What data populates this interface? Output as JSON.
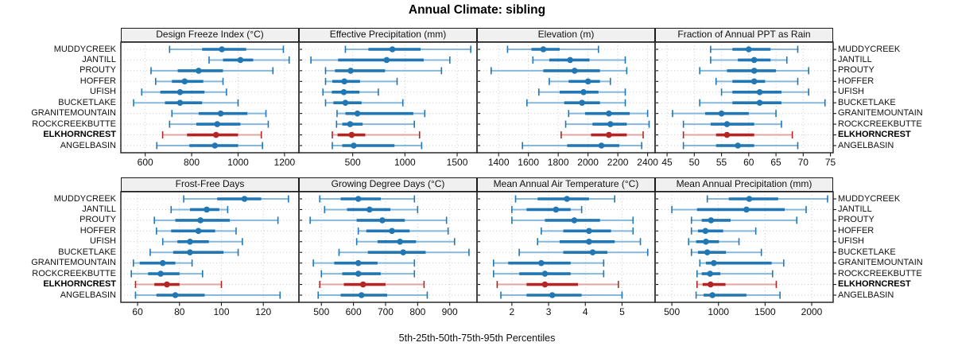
{
  "title": "Annual Climate: sibling",
  "caption": "5th-25th-50th-75th-95th Percentiles",
  "sites": [
    "MUDDYCREEK",
    "JANTILL",
    "PROUTY",
    "HOFFER",
    "UFISH",
    "BUCKETLAKE",
    "GRANITEMOUNTAIN",
    "ROCKCREEKBUTTE",
    "ELKHORNCREST",
    "ANGELBASIN"
  ],
  "highlight_site": "ELKHORNCREST",
  "colors": {
    "series_dark": "#2077b4",
    "series_light": "#85b8dd",
    "highlight_dark": "#b22626",
    "highlight_light": "#e0a5a2",
    "grid": "#cccccc",
    "border": "#1a1a1a",
    "strip_bg": "#f0f0f0"
  },
  "chart_data": [
    {
      "type": "dotplot-interval",
      "title": "Design Freeze Index (°C)",
      "percentiles": [
        "5th",
        "25th",
        "50th",
        "75th",
        "95th"
      ],
      "ticks": [
        600,
        800,
        1000,
        1200
      ],
      "xlim": [
        495,
        1262
      ],
      "values": [
        [
          705,
          845,
          930,
          1035,
          1195
        ],
        [
          875,
          935,
          1010,
          1065,
          1220
        ],
        [
          625,
          740,
          830,
          935,
          1150
        ],
        [
          645,
          715,
          770,
          850,
          935
        ],
        [
          585,
          665,
          750,
          855,
          950
        ],
        [
          550,
          685,
          750,
          845,
          1000
        ],
        [
          715,
          830,
          925,
          1040,
          1120
        ],
        [
          705,
          820,
          910,
          1010,
          1130
        ],
        [
          675,
          780,
          905,
          1000,
          1100
        ],
        [
          650,
          790,
          900,
          1000,
          1105
        ]
      ]
    },
    {
      "type": "dotplot-interval",
      "title": "Effective Precipitation (mm)",
      "percentiles": [
        "5th",
        "25th",
        "50th",
        "75th",
        "95th"
      ],
      "ticks": [
        500,
        1000,
        1500
      ],
      "xlim": [
        -15,
        1690
      ],
      "values": [
        [
          430,
          650,
          880,
          1150,
          1630
        ],
        [
          100,
          360,
          825,
          1180,
          1430
        ],
        [
          240,
          330,
          480,
          810,
          1350
        ],
        [
          240,
          305,
          420,
          570,
          925
        ],
        [
          215,
          300,
          415,
          565,
          745
        ],
        [
          240,
          315,
          430,
          585,
          980
        ],
        [
          350,
          430,
          545,
          1080,
          1190
        ],
        [
          345,
          400,
          475,
          595,
          1090
        ],
        [
          305,
          355,
          490,
          620,
          1140
        ],
        [
          305,
          400,
          510,
          900,
          1160
        ]
      ]
    },
    {
      "type": "dotplot-interval",
      "title": "Elevation (m)",
      "percentiles": [
        "5th",
        "25th",
        "50th",
        "75th",
        "95th"
      ],
      "ticks": [
        1400,
        1600,
        1800,
        2000,
        2200,
        2400
      ],
      "xlim": [
        1255,
        2450
      ],
      "values": [
        [
          1460,
          1620,
          1700,
          1810,
          2070
        ],
        [
          1630,
          1740,
          1880,
          2010,
          2250
        ],
        [
          1350,
          1700,
          1910,
          2080,
          2260
        ],
        [
          1740,
          1870,
          2000,
          2080,
          2150
        ],
        [
          1670,
          1810,
          1970,
          2070,
          2250
        ],
        [
          1590,
          1840,
          1960,
          2080,
          2250
        ],
        [
          1870,
          1980,
          2140,
          2280,
          2400
        ],
        [
          1850,
          2030,
          2150,
          2260,
          2410
        ],
        [
          1820,
          2020,
          2140,
          2260,
          2370
        ],
        [
          1560,
          1860,
          2090,
          2210,
          2360
        ]
      ]
    },
    {
      "type": "dotplot-interval",
      "title": "Fraction of Annual PPT as Rain",
      "percentiles": [
        "5th",
        "25th",
        "50th",
        "75th",
        "95th"
      ],
      "ticks": [
        45,
        50,
        55,
        60,
        65,
        70,
        75
      ],
      "xlim": [
        42.8,
        75.5
      ],
      "values": [
        [
          53,
          57,
          60,
          64,
          69
        ],
        [
          53,
          58,
          61,
          64,
          67
        ],
        [
          51,
          56,
          61,
          65,
          71
        ],
        [
          54,
          57,
          61,
          63,
          69
        ],
        [
          55,
          57,
          62,
          66,
          71
        ],
        [
          51,
          57,
          62,
          66,
          74
        ],
        [
          46,
          52,
          55,
          60,
          65
        ],
        [
          48,
          53,
          56,
          61,
          66
        ],
        [
          48,
          54,
          56,
          61,
          68
        ],
        [
          48,
          54,
          58,
          61,
          69
        ]
      ]
    },
    {
      "type": "dotplot-interval",
      "title": "Frost-Free Days",
      "percentiles": [
        "5th",
        "25th",
        "50th",
        "75th",
        "95th"
      ],
      "ticks": [
        60,
        80,
        100,
        120
      ],
      "xlim": [
        52,
        137
      ],
      "values": [
        [
          82,
          98,
          111,
          119,
          132
        ],
        [
          76,
          85,
          93,
          99,
          103
        ],
        [
          68,
          78,
          90,
          104,
          127
        ],
        [
          69,
          76,
          89,
          97,
          107
        ],
        [
          72,
          79,
          85,
          94,
          110
        ],
        [
          66,
          77,
          85,
          101,
          108
        ],
        [
          58,
          61,
          72,
          78,
          86
        ],
        [
          57,
          65,
          71,
          80,
          91
        ],
        [
          59,
          68,
          74,
          80,
          100
        ],
        [
          59,
          69,
          78,
          92,
          128
        ]
      ]
    },
    {
      "type": "dotplot-interval",
      "title": "Growing Degree Days (°C)",
      "percentiles": [
        "5th",
        "25th",
        "50th",
        "75th",
        "95th"
      ],
      "ticks": [
        500,
        600,
        700,
        800,
        900
      ],
      "xlim": [
        430,
        985
      ],
      "values": [
        [
          495,
          560,
          615,
          685,
          790
        ],
        [
          510,
          580,
          650,
          715,
          800
        ],
        [
          465,
          610,
          690,
          760,
          890
        ],
        [
          615,
          640,
          720,
          775,
          895
        ],
        [
          610,
          675,
          745,
          795,
          915
        ],
        [
          555,
          645,
          755,
          825,
          960
        ],
        [
          475,
          540,
          615,
          675,
          790
        ],
        [
          500,
          565,
          615,
          685,
          790
        ],
        [
          495,
          570,
          630,
          700,
          820
        ],
        [
          490,
          560,
          625,
          705,
          830
        ]
      ]
    },
    {
      "type": "dotplot-interval",
      "title": "Mean Annual Air Temperature (°C)",
      "percentiles": [
        "5th",
        "25th",
        "50th",
        "75th",
        "95th"
      ],
      "ticks": [
        2,
        3,
        4,
        5
      ],
      "xlim": [
        1.05,
        5.9
      ],
      "values": [
        [
          2.1,
          2.7,
          3.5,
          4.1,
          4.8
        ],
        [
          2.0,
          2.4,
          3.2,
          3.6,
          3.9
        ],
        [
          2.0,
          2.9,
          3.7,
          4.4,
          5.3
        ],
        [
          2.8,
          3.4,
          4.1,
          4.7,
          5.3
        ],
        [
          2.7,
          3.3,
          4.1,
          4.8,
          5.5
        ],
        [
          2.2,
          3.4,
          4.2,
          4.6,
          5.7
        ],
        [
          1.5,
          1.9,
          2.8,
          3.6,
          4.5
        ],
        [
          1.5,
          2.2,
          2.9,
          3.6,
          4.5
        ],
        [
          1.6,
          2.4,
          2.9,
          3.8,
          4.9
        ],
        [
          1.7,
          2.4,
          3.1,
          3.9,
          5.0
        ]
      ]
    },
    {
      "type": "dotplot-interval",
      "title": "Mean Annual Precipitation (mm)",
      "percentiles": [
        "5th",
        "25th",
        "50th",
        "75th",
        "95th"
      ],
      "ticks": [
        500,
        1000,
        1500,
        2000
      ],
      "xlim": [
        320,
        2230
      ],
      "values": [
        [
          880,
          1110,
          1330,
          1640,
          2170
        ],
        [
          500,
          770,
          1300,
          1710,
          1940
        ],
        [
          710,
          820,
          920,
          1130,
          1840
        ],
        [
          710,
          780,
          860,
          1050,
          1400
        ],
        [
          680,
          760,
          865,
          1005,
          1220
        ],
        [
          710,
          780,
          880,
          1080,
          1460
        ],
        [
          800,
          865,
          950,
          1570,
          1700
        ],
        [
          770,
          820,
          910,
          1020,
          1580
        ],
        [
          770,
          830,
          915,
          1075,
          1620
        ],
        [
          760,
          840,
          935,
          1300,
          1660
        ]
      ]
    }
  ]
}
